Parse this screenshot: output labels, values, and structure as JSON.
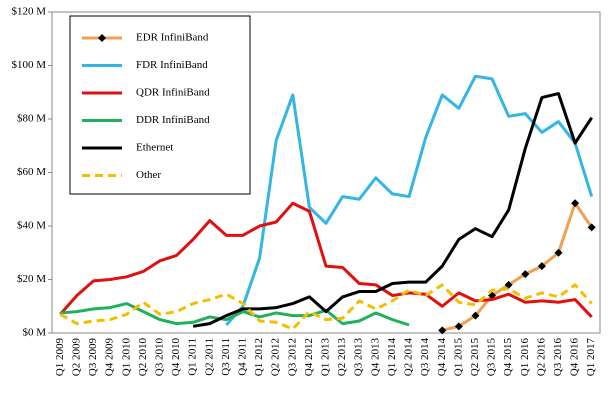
{
  "chart_data": {
    "type": "line",
    "categories": [
      "Q1 2009",
      "Q2 2009",
      "Q3 2009",
      "Q4 2009",
      "Q1 2010",
      "Q2 2010",
      "Q3 2010",
      "Q4 2010",
      "Q1 2011",
      "Q2 2011",
      "Q3 2011",
      "Q4 2011",
      "Q1 2012",
      "Q2 2012",
      "Q3 2012",
      "Q4 2012",
      "Q1 2013",
      "Q2 2013",
      "Q3 2013",
      "Q4 2013",
      "Q1 2014",
      "Q2 2014",
      "Q3 2014",
      "Q4 2014",
      "Q1 2015",
      "Q2 2015",
      "Q3 2015",
      "Q4 2015",
      "Q1 2016",
      "Q2 2016",
      "Q3 2016",
      "Q4 2016",
      "Q1 2017"
    ],
    "series": [
      {
        "name": "EDR InfiniBand",
        "color": "#f0a050",
        "marker": "diamond",
        "values": [
          null,
          null,
          null,
          null,
          null,
          null,
          null,
          null,
          null,
          null,
          null,
          null,
          null,
          null,
          null,
          null,
          null,
          null,
          null,
          null,
          null,
          null,
          null,
          1,
          2.5,
          6.5,
          14,
          18,
          22,
          25,
          30,
          48.5,
          39.5
        ]
      },
      {
        "name": "FDR InfiniBand",
        "color": "#33b5e5",
        "values": [
          null,
          null,
          null,
          null,
          null,
          null,
          null,
          null,
          null,
          null,
          3,
          10,
          28,
          72,
          89,
          47,
          41,
          51,
          50,
          58,
          52,
          51,
          73,
          89,
          84,
          96,
          95,
          81,
          82,
          75,
          79,
          71,
          51
        ]
      },
      {
        "name": "QDR InfiniBand",
        "color": "#e01010",
        "values": [
          7,
          14,
          19.5,
          20,
          21,
          23,
          27,
          29,
          35,
          42,
          36.5,
          36.5,
          40,
          41.5,
          48.5,
          45.5,
          25,
          24.5,
          18.5,
          18,
          14,
          15,
          14.5,
          10,
          15,
          12,
          12.5,
          14.5,
          11.5,
          12,
          11.5,
          12.5,
          6
        ]
      },
      {
        "name": "DDR InfiniBand",
        "color": "#20b060",
        "values": [
          7.5,
          8,
          9,
          9.5,
          11,
          8,
          5,
          3.5,
          4,
          6,
          5,
          8,
          6,
          7.5,
          6.5,
          6.5,
          8.5,
          3.5,
          4.5,
          7.5,
          5,
          3,
          null,
          null,
          null,
          null,
          null,
          null,
          null,
          null,
          null,
          null,
          null
        ]
      },
      {
        "name": "Ethernet",
        "color": "#000000",
        "values": [
          null,
          null,
          null,
          null,
          null,
          null,
          null,
          null,
          2.5,
          3.5,
          6.5,
          9,
          9,
          9.5,
          11,
          13.5,
          8,
          13.5,
          15.5,
          15.5,
          18.5,
          19,
          19,
          25,
          35,
          39,
          36,
          46,
          69,
          88,
          89.5,
          71,
          80.5
        ]
      },
      {
        "name": "Other",
        "color": "#f0c000",
        "dash": true,
        "values": [
          7,
          3.5,
          4.5,
          5,
          7,
          11.5,
          7,
          8,
          11,
          12.5,
          14.5,
          11,
          4.5,
          4,
          1.5,
          8,
          5,
          5.5,
          12,
          9,
          12,
          16,
          14,
          18,
          11.5,
          10.5,
          16,
          16.5,
          13,
          15,
          13.5,
          18,
          11
        ]
      }
    ],
    "ylim": [
      0,
      120
    ],
    "yticks": [
      {
        "value": 0,
        "label": "$0 M"
      },
      {
        "value": 20,
        "label": "$20 M"
      },
      {
        "value": 40,
        "label": "$40 M"
      },
      {
        "value": 60,
        "label": "$60 M"
      },
      {
        "value": 80,
        "label": "$80 M"
      },
      {
        "value": 100,
        "label": "$100 M"
      },
      {
        "value": 120,
        "label": "$120 M"
      }
    ],
    "legend": "upper-left"
  }
}
